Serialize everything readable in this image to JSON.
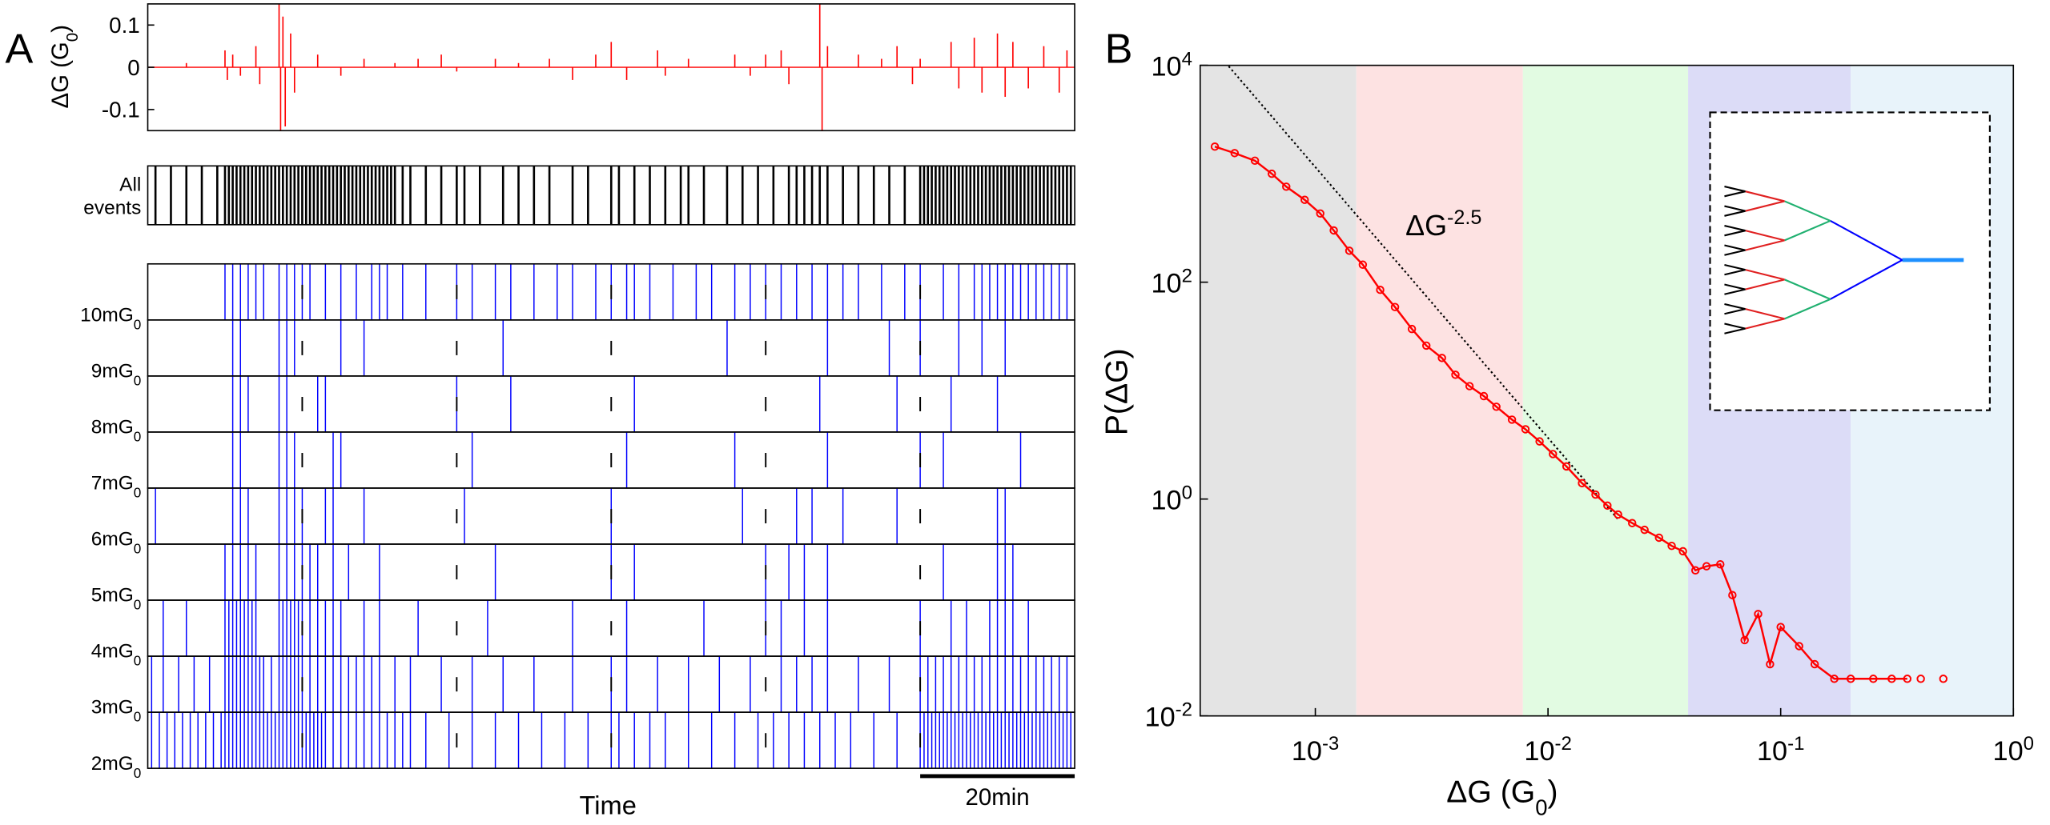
{
  "chart_data": [
    {
      "type": "stem",
      "panel_label": "A",
      "ylabel": "ΔG (G",
      "ylabel_sub": "0",
      "ylabel_end": ")",
      "color": "#ff0000",
      "xlim": [
        0,
        120
      ],
      "ylim": [
        -0.15,
        0.15
      ],
      "yticks": [
        -0.1,
        0,
        0.1
      ],
      "x": [
        5,
        10,
        10.3,
        11,
        12,
        14,
        14.5,
        17,
        17.2,
        17.5,
        17.8,
        18.5,
        19,
        22,
        25,
        28,
        32,
        35,
        38,
        40,
        45,
        48,
        52,
        55,
        58,
        60,
        62,
        66,
        67,
        70,
        76,
        78,
        80,
        82,
        83,
        87,
        87.3,
        88,
        92,
        95,
        97,
        99,
        100,
        104,
        105,
        107,
        108,
        110,
        111,
        112,
        114,
        116,
        118,
        119
      ],
      "values": [
        0.01,
        0.04,
        -0.03,
        0.03,
        -0.02,
        0.05,
        -0.04,
        0.15,
        -0.15,
        0.12,
        -0.14,
        0.08,
        -0.06,
        0.03,
        -0.02,
        0.02,
        0.01,
        0.02,
        0.03,
        -0.01,
        0.02,
        0.01,
        0.02,
        -0.03,
        0.03,
        0.06,
        -0.03,
        0.04,
        -0.02,
        0.02,
        0.03,
        -0.02,
        0.03,
        0.04,
        -0.04,
        0.15,
        -0.15,
        0.05,
        0.03,
        0.02,
        0.05,
        -0.04,
        0.02,
        0.06,
        -0.05,
        0.07,
        -0.06,
        0.08,
        -0.07,
        0.06,
        -0.05,
        0.05,
        -0.06,
        0.04
      ]
    },
    {
      "type": "raster",
      "label_lines": [
        "All",
        "events"
      ],
      "color": "#000000",
      "xlim": [
        0,
        120
      ],
      "x": [
        1,
        3,
        5,
        7,
        9,
        10,
        10.5,
        11,
        11.5,
        12,
        12.5,
        13,
        13.5,
        14,
        14.5,
        15,
        15.5,
        16,
        16.5,
        17,
        17.5,
        18,
        18.5,
        19,
        19.5,
        20,
        20.5,
        21,
        21.5,
        22,
        22.5,
        23,
        23.5,
        24,
        24.5,
        25,
        25.5,
        26,
        26.5,
        27,
        27.5,
        28,
        28.5,
        29,
        29.5,
        30,
        30.5,
        31,
        31.5,
        32,
        33,
        34,
        36,
        38,
        40,
        41,
        43,
        46,
        48,
        50,
        52,
        55,
        57,
        60,
        61,
        63,
        65,
        67,
        69,
        70,
        72,
        75,
        77,
        79,
        81,
        83,
        84,
        85,
        86,
        87,
        88,
        90,
        92,
        94,
        96,
        98,
        100,
        100.5,
        101,
        101.5,
        102,
        102.5,
        103,
        103.5,
        104,
        104.5,
        105,
        105.5,
        106,
        106.5,
        107,
        107.5,
        108,
        108.5,
        109,
        109.5,
        110,
        110.5,
        111,
        111.5,
        112,
        112.5,
        113,
        113.5,
        114,
        114.5,
        115,
        115.5,
        116,
        116.5,
        117,
        117.5,
        118,
        118.5,
        119,
        119.5
      ]
    },
    {
      "type": "raster-rows",
      "xlabel": "Time",
      "xlim": [
        0,
        120
      ],
      "xticks": [
        20,
        40,
        60,
        80,
        100
      ],
      "scale_bar": {
        "label": "20min",
        "x": [
          100,
          120
        ]
      },
      "series": [
        {
          "name": "10mG",
          "name_sub": "0",
          "color": "#0000ff",
          "x": [
            10,
            11,
            12,
            13,
            14,
            15,
            17,
            18,
            19,
            20,
            21,
            23,
            25,
            27,
            29,
            30,
            31,
            33,
            36,
            40,
            42,
            45,
            47,
            50,
            53,
            55,
            58,
            60,
            62,
            63,
            65,
            68,
            71,
            73,
            76,
            78,
            80,
            82,
            84,
            86,
            88,
            90,
            92,
            95,
            98,
            100,
            103,
            105,
            107,
            108,
            109,
            110,
            111,
            112,
            113,
            114,
            115,
            116,
            117,
            118,
            119
          ]
        },
        {
          "name": "9mG",
          "name_sub": "0",
          "color": "#0000ff",
          "x": [
            11,
            12,
            17,
            18,
            19,
            25,
            28,
            46,
            75,
            88,
            96,
            100,
            105,
            108,
            111
          ]
        },
        {
          "name": "8mG",
          "name_sub": "0",
          "color": "#0000ff",
          "x": [
            11,
            12,
            13,
            17,
            18,
            22,
            23,
            40,
            47,
            63,
            87,
            97,
            104,
            110
          ]
        },
        {
          "name": "7mG",
          "name_sub": "0",
          "color": "#0000ff",
          "x": [
            11,
            12,
            17,
            18,
            19,
            24,
            25,
            42,
            62,
            76,
            88,
            100,
            103,
            113
          ]
        },
        {
          "name": "6mG",
          "name_sub": "0",
          "color": "#0000ff",
          "x": [
            1,
            11,
            12,
            13,
            17,
            18,
            19,
            20,
            23,
            24,
            28,
            41,
            60,
            77,
            84,
            86,
            90,
            97,
            110,
            111
          ]
        },
        {
          "name": "5mG",
          "name_sub": "0",
          "color": "#0000ff",
          "x": [
            10,
            11,
            12,
            13,
            14,
            17,
            18,
            19,
            20,
            21,
            22,
            24,
            26,
            30,
            45,
            60,
            63,
            80,
            83,
            85,
            88,
            103,
            110,
            111,
            112
          ]
        },
        {
          "name": "4mG",
          "name_sub": "0",
          "color": "#0000ff",
          "x": [
            2,
            5,
            10,
            10.5,
            11,
            11.5,
            12,
            12.5,
            13,
            13.5,
            14,
            17,
            17.5,
            18,
            18.5,
            19,
            19.5,
            20,
            21,
            22,
            23,
            24,
            25,
            28,
            30,
            35,
            44,
            55,
            62,
            72,
            80,
            82,
            85,
            88,
            100,
            104,
            106,
            109,
            110,
            111,
            112,
            114
          ]
        },
        {
          "name": "3mG",
          "name_sub": "0",
          "color": "#0000ff",
          "x": [
            0.5,
            2,
            4,
            6,
            8,
            10,
            10.5,
            11,
            11.5,
            12,
            12.5,
            13,
            13.5,
            14,
            14.5,
            15,
            16,
            17,
            17.5,
            18,
            18.5,
            19,
            19.5,
            20,
            21,
            22,
            23,
            24,
            25,
            26,
            27,
            28,
            29,
            30,
            32,
            34,
            38,
            42,
            46,
            50,
            55,
            60,
            62,
            66,
            70,
            74,
            78,
            82,
            84,
            86,
            88,
            92,
            96,
            100,
            101,
            102,
            103,
            104,
            105,
            106,
            107,
            108,
            109,
            110,
            111,
            112,
            113,
            114,
            115,
            116,
            117,
            118,
            119
          ]
        },
        {
          "name": "2mG",
          "name_sub": "0",
          "color": "#0000ff",
          "x": [
            0.5,
            1.5,
            2.5,
            3.5,
            4.5,
            5.5,
            6.5,
            7.5,
            8.5,
            9.5,
            10,
            10.5,
            11,
            11.5,
            12,
            12.5,
            13,
            13.5,
            14,
            14.5,
            15,
            15.5,
            16,
            16.5,
            17,
            17.5,
            18,
            18.5,
            19,
            19.5,
            20,
            20.5,
            21,
            21.5,
            22,
            22.5,
            23,
            24,
            25,
            26,
            27,
            28,
            29,
            30,
            31,
            32,
            33,
            34,
            36,
            39,
            42,
            45,
            48,
            51,
            54,
            57,
            60,
            61,
            63,
            65,
            67,
            70,
            73,
            76,
            79,
            81,
            83,
            85,
            87,
            89,
            91,
            94,
            97,
            100,
            100.5,
            101,
            101.5,
            102,
            102.5,
            103,
            103.5,
            104,
            104.5,
            105,
            105.5,
            106,
            106.5,
            107,
            107.5,
            108,
            108.5,
            109,
            109.5,
            110,
            110.5,
            111,
            111.5,
            112,
            112.5,
            113,
            113.5,
            114,
            114.5,
            115,
            115.5,
            116,
            116.5,
            117,
            117.5,
            118,
            118.5,
            119,
            119.5
          ]
        }
      ]
    },
    {
      "type": "loglog",
      "panel_label": "B",
      "xlabel": "ΔG (G",
      "xlabel_sub": "0",
      "xlabel_end": ")",
      "ylabel": "P(ΔG)",
      "color": "#ff0000",
      "log_x": true,
      "log_y": true,
      "xlim": [
        0.00032,
        1
      ],
      "ylim": [
        0.01,
        10000
      ],
      "xticks": [
        {
          "value": 0.001,
          "label": "10",
          "exponent": "-3"
        },
        {
          "value": 0.01,
          "label": "10",
          "exponent": "-2"
        },
        {
          "value": 0.1,
          "label": "10",
          "exponent": "-1"
        },
        {
          "value": 1,
          "label": "10",
          "exponent": "0"
        }
      ],
      "yticks": [
        {
          "value": 0.01,
          "label": "10",
          "exponent": "-2"
        },
        {
          "value": 1,
          "label": "10",
          "exponent": "0"
        },
        {
          "value": 100,
          "label": "10",
          "exponent": "2"
        },
        {
          "value": 10000,
          "label": "10",
          "exponent": "4"
        }
      ],
      "bands": [
        {
          "x": [
            0.00032,
            0.0015
          ],
          "color": "#e4e4e4"
        },
        {
          "x": [
            0.0015,
            0.0078
          ],
          "color": "#fde2e2"
        },
        {
          "x": [
            0.0078,
            0.04
          ],
          "color": "#e2fbe2"
        },
        {
          "x": [
            0.04,
            0.2
          ],
          "color": "#dcdcf7"
        },
        {
          "x": [
            0.2,
            1
          ],
          "color": "#e8f3fa"
        }
      ],
      "fit": {
        "label": "ΔG",
        "exponent": "-2.5",
        "x": [
          0.0004,
          0.02
        ],
        "values": [
          11350,
          0.65
        ]
      },
      "x": [
        0.00037,
        0.00045,
        0.00055,
        0.00065,
        0.00075,
        0.0009,
        0.00105,
        0.0012,
        0.0014,
        0.0016,
        0.0019,
        0.0022,
        0.0026,
        0.003,
        0.0035,
        0.004,
        0.0046,
        0.0053,
        0.006,
        0.007,
        0.008,
        0.0092,
        0.0105,
        0.012,
        0.014,
        0.016,
        0.018,
        0.02,
        0.023,
        0.026,
        0.03,
        0.034,
        0.038,
        0.043,
        0.048,
        0.055,
        0.062,
        0.07,
        0.08,
        0.09,
        0.1,
        0.12,
        0.14,
        0.17,
        0.2,
        0.25,
        0.3,
        0.35,
        0.4,
        0.5
      ],
      "values": [
        1780,
        1550,
        1320,
        1000,
        760,
        575,
        430,
        300,
        195,
        145,
        85,
        59,
        37,
        26,
        20,
        14,
        11,
        8.9,
        7.1,
        5.4,
        4.4,
        3.4,
        2.6,
        2,
        1.4,
        1.1,
        0.87,
        0.72,
        0.6,
        0.52,
        0.44,
        0.37,
        0.33,
        0.22,
        0.24,
        0.25,
        0.13,
        0.05,
        0.087,
        0.03,
        0.066,
        0.044,
        0.03,
        0.022,
        0.022,
        0.022,
        0.022,
        0.022,
        0.022,
        0.022
      ]
    }
  ]
}
